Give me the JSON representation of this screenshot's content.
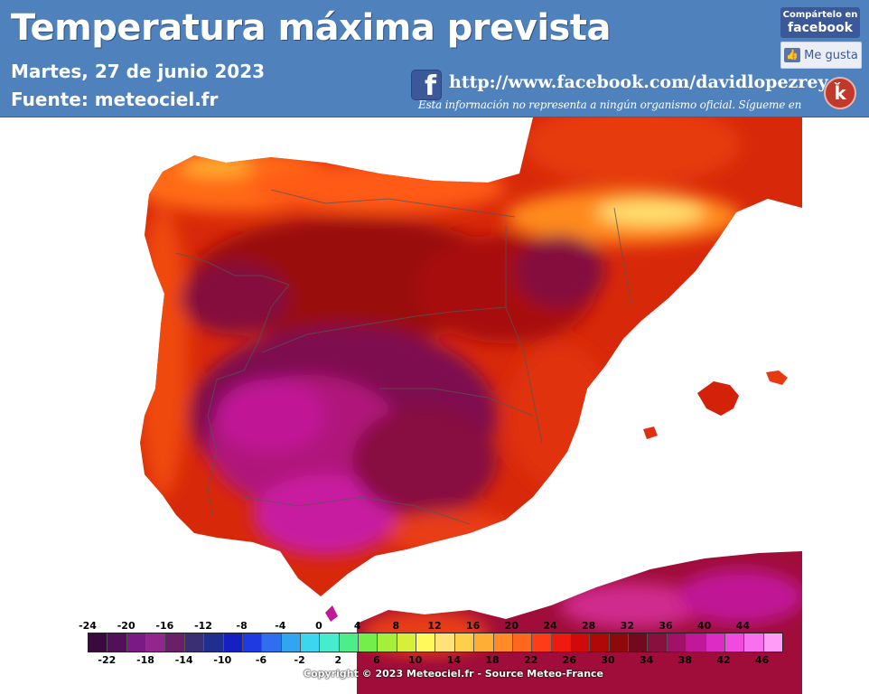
{
  "header": {
    "title": "Temperatura máxima prevista",
    "date": "Martes, 27 de junio 2023",
    "source": "Fuente:  meteociel.fr",
    "facebook_url": "http://www.facebook.com/davidlopezrey",
    "disclaimer": "Esta información no representa a ningún organismo oficial. Sígueme en",
    "bg_color": "#4f81bd"
  },
  "facebook_widget": {
    "share_line1": "Compártelo en",
    "share_line2": "facebook",
    "like_label": "Me gusta",
    "fb_glyph": "f"
  },
  "icons": {
    "facebook": "facebook-icon",
    "thumbs_up": "thumbs-up-icon",
    "author_logo": "author-logo-icon"
  },
  "legend": {
    "top_labels": [
      "-24",
      "-20",
      "-16",
      "-12",
      "-8",
      "-4",
      "0",
      "4",
      "8",
      "12",
      "16",
      "20",
      "24",
      "28",
      "32",
      "36",
      "40",
      "44"
    ],
    "bottom_labels": [
      "-22",
      "-18",
      "-14",
      "-10",
      "-6",
      "-2",
      "2",
      "6",
      "10",
      "14",
      "18",
      "22",
      "26",
      "30",
      "34",
      "38",
      "42",
      "46"
    ],
    "colors": [
      "#3a0a3f",
      "#52105a",
      "#7a1a85",
      "#93258f",
      "#6b1f6a",
      "#3a2f72",
      "#1f2f90",
      "#1420c0",
      "#1e3ae0",
      "#2f6fee",
      "#30a5f0",
      "#3dd6f0",
      "#46eccb",
      "#4ded8a",
      "#74ee4a",
      "#a5ee3a",
      "#d6f03a",
      "#fffa5a",
      "#ffe27a",
      "#ffcf4c",
      "#ffae34",
      "#ff8a26",
      "#ff6620",
      "#ff3c18",
      "#ee1a10",
      "#d00a0a",
      "#b00808",
      "#8e0a0a",
      "#720a1e",
      "#88103f",
      "#a3106a",
      "#c01896",
      "#dd2cc4",
      "#f04ade",
      "#f870ee",
      "#ff9cf8"
    ]
  },
  "copyright": "Copyright © 2023 Meteociel.fr - Source Meteo-France",
  "map": {
    "region": "Península Ibérica",
    "land_base_color": "#d42008",
    "sea_color": "#ffffff"
  }
}
